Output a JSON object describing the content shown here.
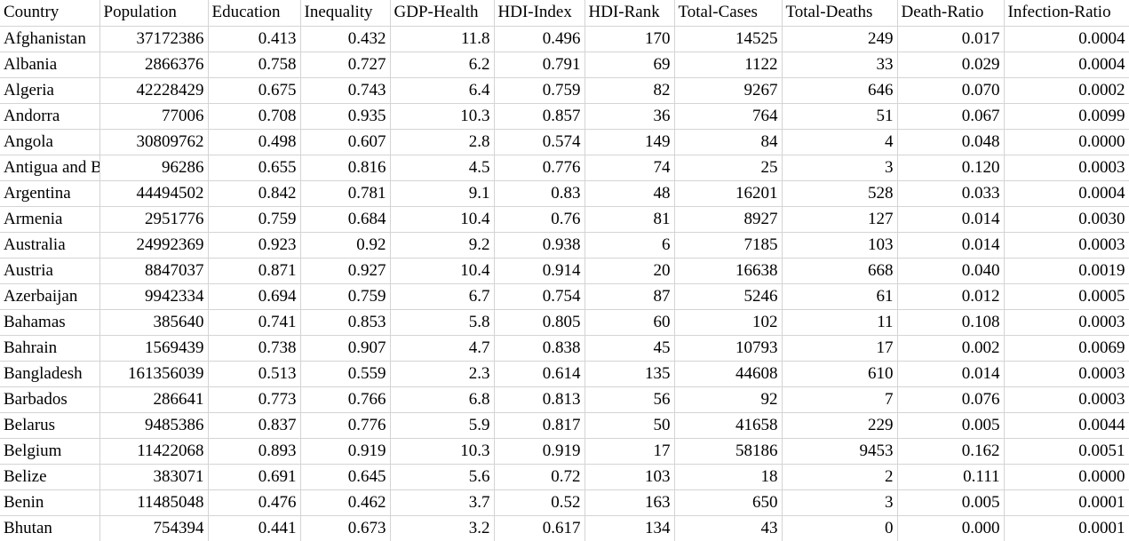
{
  "sheet": {
    "columns": [
      "Country",
      "Population",
      "Education",
      "Inequality",
      "GDP-Health",
      "HDI-Index",
      "HDI-Rank",
      "Total-Cases",
      "Total-Deaths",
      "Death-Ratio",
      "Infection-Ratio"
    ],
    "rows": [
      [
        "Afghanistan",
        "37172386",
        "0.413",
        "0.432",
        "11.8",
        "0.496",
        "170",
        "14525",
        "249",
        "0.017",
        "0.0004"
      ],
      [
        "Albania",
        "2866376",
        "0.758",
        "0.727",
        "6.2",
        "0.791",
        "69",
        "1122",
        "33",
        "0.029",
        "0.0004"
      ],
      [
        "Algeria",
        "42228429",
        "0.675",
        "0.743",
        "6.4",
        "0.759",
        "82",
        "9267",
        "646",
        "0.070",
        "0.0002"
      ],
      [
        "Andorra",
        "77006",
        "0.708",
        "0.935",
        "10.3",
        "0.857",
        "36",
        "764",
        "51",
        "0.067",
        "0.0099"
      ],
      [
        "Angola",
        "30809762",
        "0.498",
        "0.607",
        "2.8",
        "0.574",
        "149",
        "84",
        "4",
        "0.048",
        "0.0000"
      ],
      [
        "Antigua and Barbuda",
        "96286",
        "0.655",
        "0.816",
        "4.5",
        "0.776",
        "74",
        "25",
        "3",
        "0.120",
        "0.0003"
      ],
      [
        "Argentina",
        "44494502",
        "0.842",
        "0.781",
        "9.1",
        "0.83",
        "48",
        "16201",
        "528",
        "0.033",
        "0.0004"
      ],
      [
        "Armenia",
        "2951776",
        "0.759",
        "0.684",
        "10.4",
        "0.76",
        "81",
        "8927",
        "127",
        "0.014",
        "0.0030"
      ],
      [
        "Australia",
        "24992369",
        "0.923",
        "0.92",
        "9.2",
        "0.938",
        "6",
        "7185",
        "103",
        "0.014",
        "0.0003"
      ],
      [
        "Austria",
        "8847037",
        "0.871",
        "0.927",
        "10.4",
        "0.914",
        "20",
        "16638",
        "668",
        "0.040",
        "0.0019"
      ],
      [
        "Azerbaijan",
        "9942334",
        "0.694",
        "0.759",
        "6.7",
        "0.754",
        "87",
        "5246",
        "61",
        "0.012",
        "0.0005"
      ],
      [
        "Bahamas",
        "385640",
        "0.741",
        "0.853",
        "5.8",
        "0.805",
        "60",
        "102",
        "11",
        "0.108",
        "0.0003"
      ],
      [
        "Bahrain",
        "1569439",
        "0.738",
        "0.907",
        "4.7",
        "0.838",
        "45",
        "10793",
        "17",
        "0.002",
        "0.0069"
      ],
      [
        "Bangladesh",
        "161356039",
        "0.513",
        "0.559",
        "2.3",
        "0.614",
        "135",
        "44608",
        "610",
        "0.014",
        "0.0003"
      ],
      [
        "Barbados",
        "286641",
        "0.773",
        "0.766",
        "6.8",
        "0.813",
        "56",
        "92",
        "7",
        "0.076",
        "0.0003"
      ],
      [
        "Belarus",
        "9485386",
        "0.837",
        "0.776",
        "5.9",
        "0.817",
        "50",
        "41658",
        "229",
        "0.005",
        "0.0044"
      ],
      [
        "Belgium",
        "11422068",
        "0.893",
        "0.919",
        "10.3",
        "0.919",
        "17",
        "58186",
        "9453",
        "0.162",
        "0.0051"
      ],
      [
        "Belize",
        "383071",
        "0.691",
        "0.645",
        "5.6",
        "0.72",
        "103",
        "18",
        "2",
        "0.111",
        "0.0000"
      ],
      [
        "Benin",
        "11485048",
        "0.476",
        "0.462",
        "3.7",
        "0.52",
        "163",
        "650",
        "3",
        "0.005",
        "0.0001"
      ],
      [
        "Bhutan",
        "754394",
        "0.441",
        "0.673",
        "3.2",
        "0.617",
        "134",
        "43",
        "0",
        "0.000",
        "0.0001"
      ]
    ]
  }
}
